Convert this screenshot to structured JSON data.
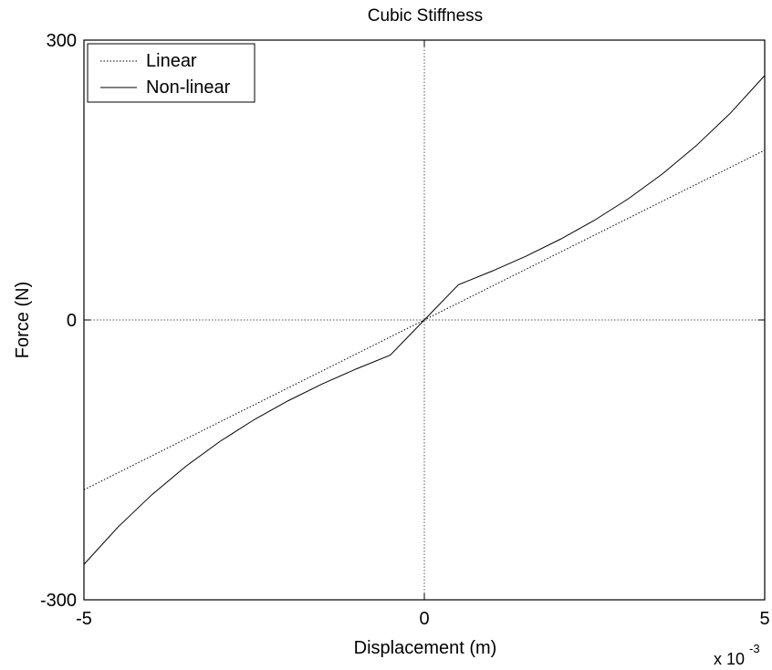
{
  "chart_data": {
    "type": "line",
    "title": "Cubic Stiffness",
    "xlabel": "Displacement   (m)",
    "ylabel": "Force (N)",
    "x_exponent_base": "x 10",
    "x_exponent_power": "-3",
    "xlim": [
      -5,
      5
    ],
    "ylim": [
      -300,
      300
    ],
    "xticks": [
      {
        "value": -5,
        "label": "-5"
      },
      {
        "value": 0,
        "label": "0"
      },
      {
        "value": 5,
        "label": "5"
      }
    ],
    "yticks": [
      {
        "value": -300,
        "label": "-300"
      },
      {
        "value": 0,
        "label": "0"
      },
      {
        "value": 300,
        "label": "300"
      }
    ],
    "legend_position": "top-left",
    "series": [
      {
        "name": "Linear",
        "style": "dotted",
        "x": [
          -5,
          -4,
          -3,
          -2,
          -1,
          0,
          1,
          2,
          3,
          4,
          5
        ],
        "y": [
          -182,
          -145.6,
          -109.2,
          -72.8,
          -36.4,
          0,
          36.4,
          72.8,
          109.2,
          145.6,
          182
        ]
      },
      {
        "name": "Non-linear",
        "style": "solid",
        "x": [
          -5,
          -4.5,
          -4,
          -3.5,
          -3,
          -2.5,
          -2,
          -1.5,
          -1,
          -0.5,
          0,
          0.5,
          1,
          1.5,
          2,
          2.5,
          3,
          3.5,
          4,
          4.5,
          5
        ],
        "y": [
          -262,
          -222,
          -187.2,
          -156.7,
          -130.1,
          -106.9,
          -86.6,
          -68.6,
          -52.5,
          -37.7,
          0,
          37.7,
          52.5,
          68.6,
          86.6,
          106.9,
          130.1,
          156.7,
          187.2,
          222,
          262
        ]
      }
    ],
    "axis_zero_lines": true,
    "grid": false,
    "colors": {
      "line": "#000000",
      "background": "#ffffff",
      "zero_lines": "#555555"
    }
  }
}
